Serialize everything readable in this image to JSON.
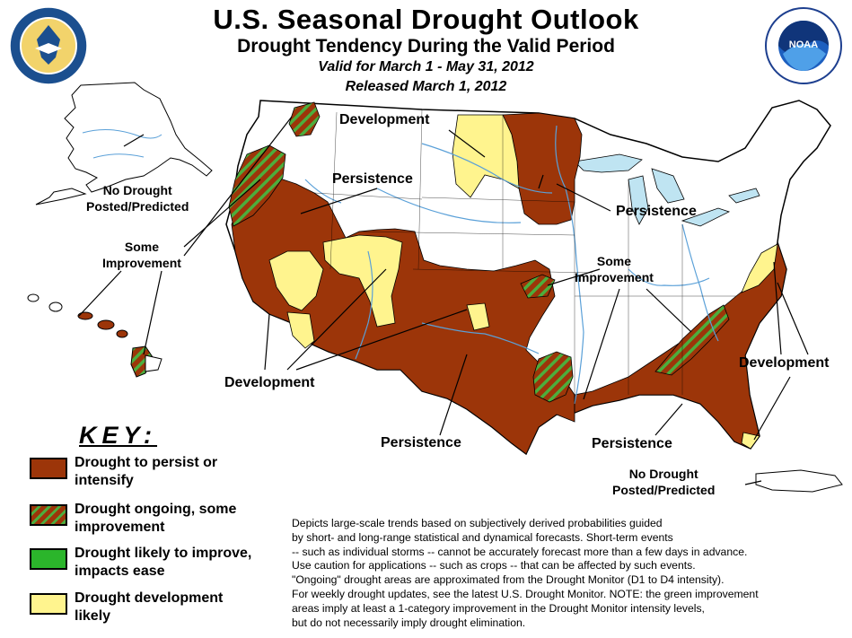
{
  "header": {
    "title": "U.S. Seasonal Drought Outlook",
    "subtitle": "Drought Tendency During the Valid Period",
    "valid": "Valid for March 1 - May 31, 2012",
    "released": "Released March 1, 2012"
  },
  "colors": {
    "persist": "#9c3509",
    "improve_stripe": "#4cae3d",
    "improve": "#2bb52b",
    "develop": "#fff48e",
    "water": "#bfe4f2",
    "rivers": "#5aa0d8"
  },
  "labels": {
    "development_north": "Development",
    "persistence_west": "Persistence",
    "no_drought_alaska": [
      "No Drought",
      "Posted/Predicted"
    ],
    "some_improvement_west": [
      "Some",
      "Improvement"
    ],
    "persistence_midwest": "Persistence",
    "some_improvement_east": [
      "Some",
      "Improvement"
    ],
    "development_southwest": "Development",
    "development_east": "Development",
    "persistence_texas": "Persistence",
    "persistence_southeast": "Persistence",
    "no_drought_puerto_rico": [
      "No Drought",
      "Posted/Predicted"
    ]
  },
  "key": {
    "title": "KEY:",
    "items": [
      {
        "label": [
          "Drought to persist or",
          "intensify"
        ],
        "swatch": "persist"
      },
      {
        "label": [
          "Drought ongoing, some",
          "improvement"
        ],
        "swatch": "improve_stripe"
      },
      {
        "label": [
          "Drought likely to improve,",
          "impacts ease"
        ],
        "swatch": "improve"
      },
      {
        "label": [
          "Drought development",
          "likely"
        ],
        "swatch": "develop"
      }
    ]
  },
  "description": [
    "Depicts large-scale trends based on subjectively derived probabilities guided",
    "by short- and long-range statistical and dynamical forecasts. Short-term events",
    "-- such as individual storms -- cannot be accurately forecast more than a few days in advance.",
    "Use caution for applications -- such as crops -- that can be affected by such events.",
    "\"Ongoing\" drought areas are approximated from the Drought Monitor (D1 to D4 intensity).",
    "For weekly drought updates, see the latest U.S. Drought Monitor. NOTE: the green improvement",
    "areas imply at least a 1-category improvement in the Drought Monitor intensity levels,",
    "but do not necessarily imply drought elimination."
  ]
}
